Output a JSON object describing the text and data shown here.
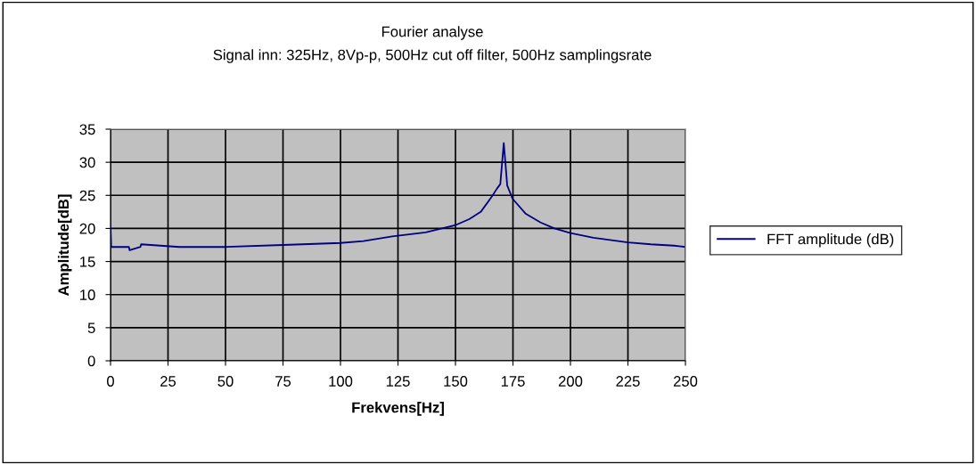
{
  "chart_data": {
    "type": "line",
    "title": "Fourier analyse",
    "subtitle": "Signal inn: 325Hz, 8Vp-p, 500Hz cut off filter, 500Hz samplingsrate",
    "xlabel": "Frekvens[Hz]",
    "ylabel": "Amplitude[dB]",
    "series": [
      {
        "name": "FFT amplitude (dB)",
        "color": "#000080",
        "x": [
          0,
          0.3,
          8,
          8.3,
          13,
          13.3,
          30,
          50,
          75,
          100,
          110,
          122.5,
          137,
          150,
          156,
          161,
          166,
          168,
          169.5,
          170.3,
          171,
          171.7,
          172.5,
          174.8,
          180.6,
          187,
          193,
          200,
          210,
          225,
          235,
          245,
          250
        ],
        "values": [
          20.5,
          17.2,
          17.2,
          16.7,
          17.2,
          17.6,
          17.2,
          17.2,
          17.5,
          17.8,
          18.1,
          18.8,
          19.4,
          20.5,
          21.4,
          22.5,
          24.9,
          26.0,
          26.7,
          30.0,
          32.9,
          30.0,
          26.5,
          24.5,
          22.2,
          20.9,
          20.0,
          19.3,
          18.6,
          17.9,
          17.6,
          17.4,
          17.2
        ]
      }
    ],
    "xlim": [
      0,
      250
    ],
    "xticks": [
      0,
      25,
      50,
      75,
      100,
      125,
      150,
      175,
      200,
      225,
      250
    ],
    "ylim": [
      0,
      35
    ],
    "yticks": [
      0,
      5,
      10,
      15,
      20,
      25,
      30,
      35
    ],
    "grid": true,
    "legend": "right",
    "marker": "none",
    "line_style": "solid"
  }
}
